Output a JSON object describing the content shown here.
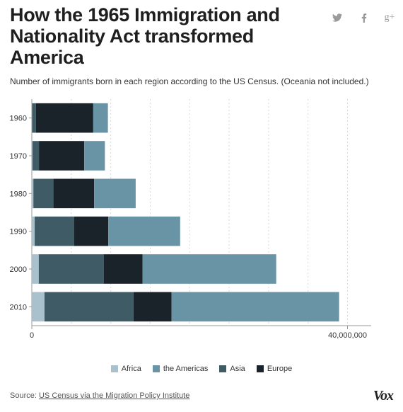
{
  "header": {
    "title": "How the 1965 Immigration and Nationality Act transformed America",
    "subtitle": "Number of immigrants born in each region according to the US Census. (Oceania not included.)"
  },
  "share": {
    "twitter_icon": "twitter-icon",
    "facebook_icon": "facebook-icon",
    "google_plus_icon": "google-plus-icon"
  },
  "colors": {
    "Africa": "#a8c1cc",
    "the Americas": "#6994a6",
    "Asia": "#3f5b66",
    "Europe": "#1b232a",
    "grid": "#d8d8d8",
    "axis": "#999999"
  },
  "chart_data": {
    "type": "bar",
    "orientation": "horizontal",
    "stacked": true,
    "categories": [
      "1960",
      "1970",
      "1980",
      "1990",
      "2000",
      "2010"
    ],
    "series": [
      {
        "name": "Africa",
        "values": [
          35000,
          80000,
          200000,
          364000,
          881000,
          1607000
        ]
      },
      {
        "name": "Asia",
        "values": [
          490000,
          824000,
          2540000,
          4979000,
          8226000,
          11284000
        ]
      },
      {
        "name": "Europe",
        "values": [
          7256000,
          5740000,
          5150000,
          4350000,
          4916000,
          4817000
        ]
      },
      {
        "name": "the Americas",
        "values": [
          1860000,
          2616000,
          5270000,
          9101000,
          16944000,
          21224000
        ]
      }
    ],
    "xlim": [
      0,
      43000000
    ],
    "xticks": [
      0,
      40000000
    ],
    "xtick_labels": [
      "0",
      "40,000,000"
    ],
    "grid": true,
    "legend_position": "bottom",
    "legend": [
      "Africa",
      "the Americas",
      "Asia",
      "Europe"
    ]
  },
  "footer": {
    "source_prefix": "Source:",
    "source_link": "US Census via the Migration Policy Institute",
    "logo": "Vox"
  }
}
